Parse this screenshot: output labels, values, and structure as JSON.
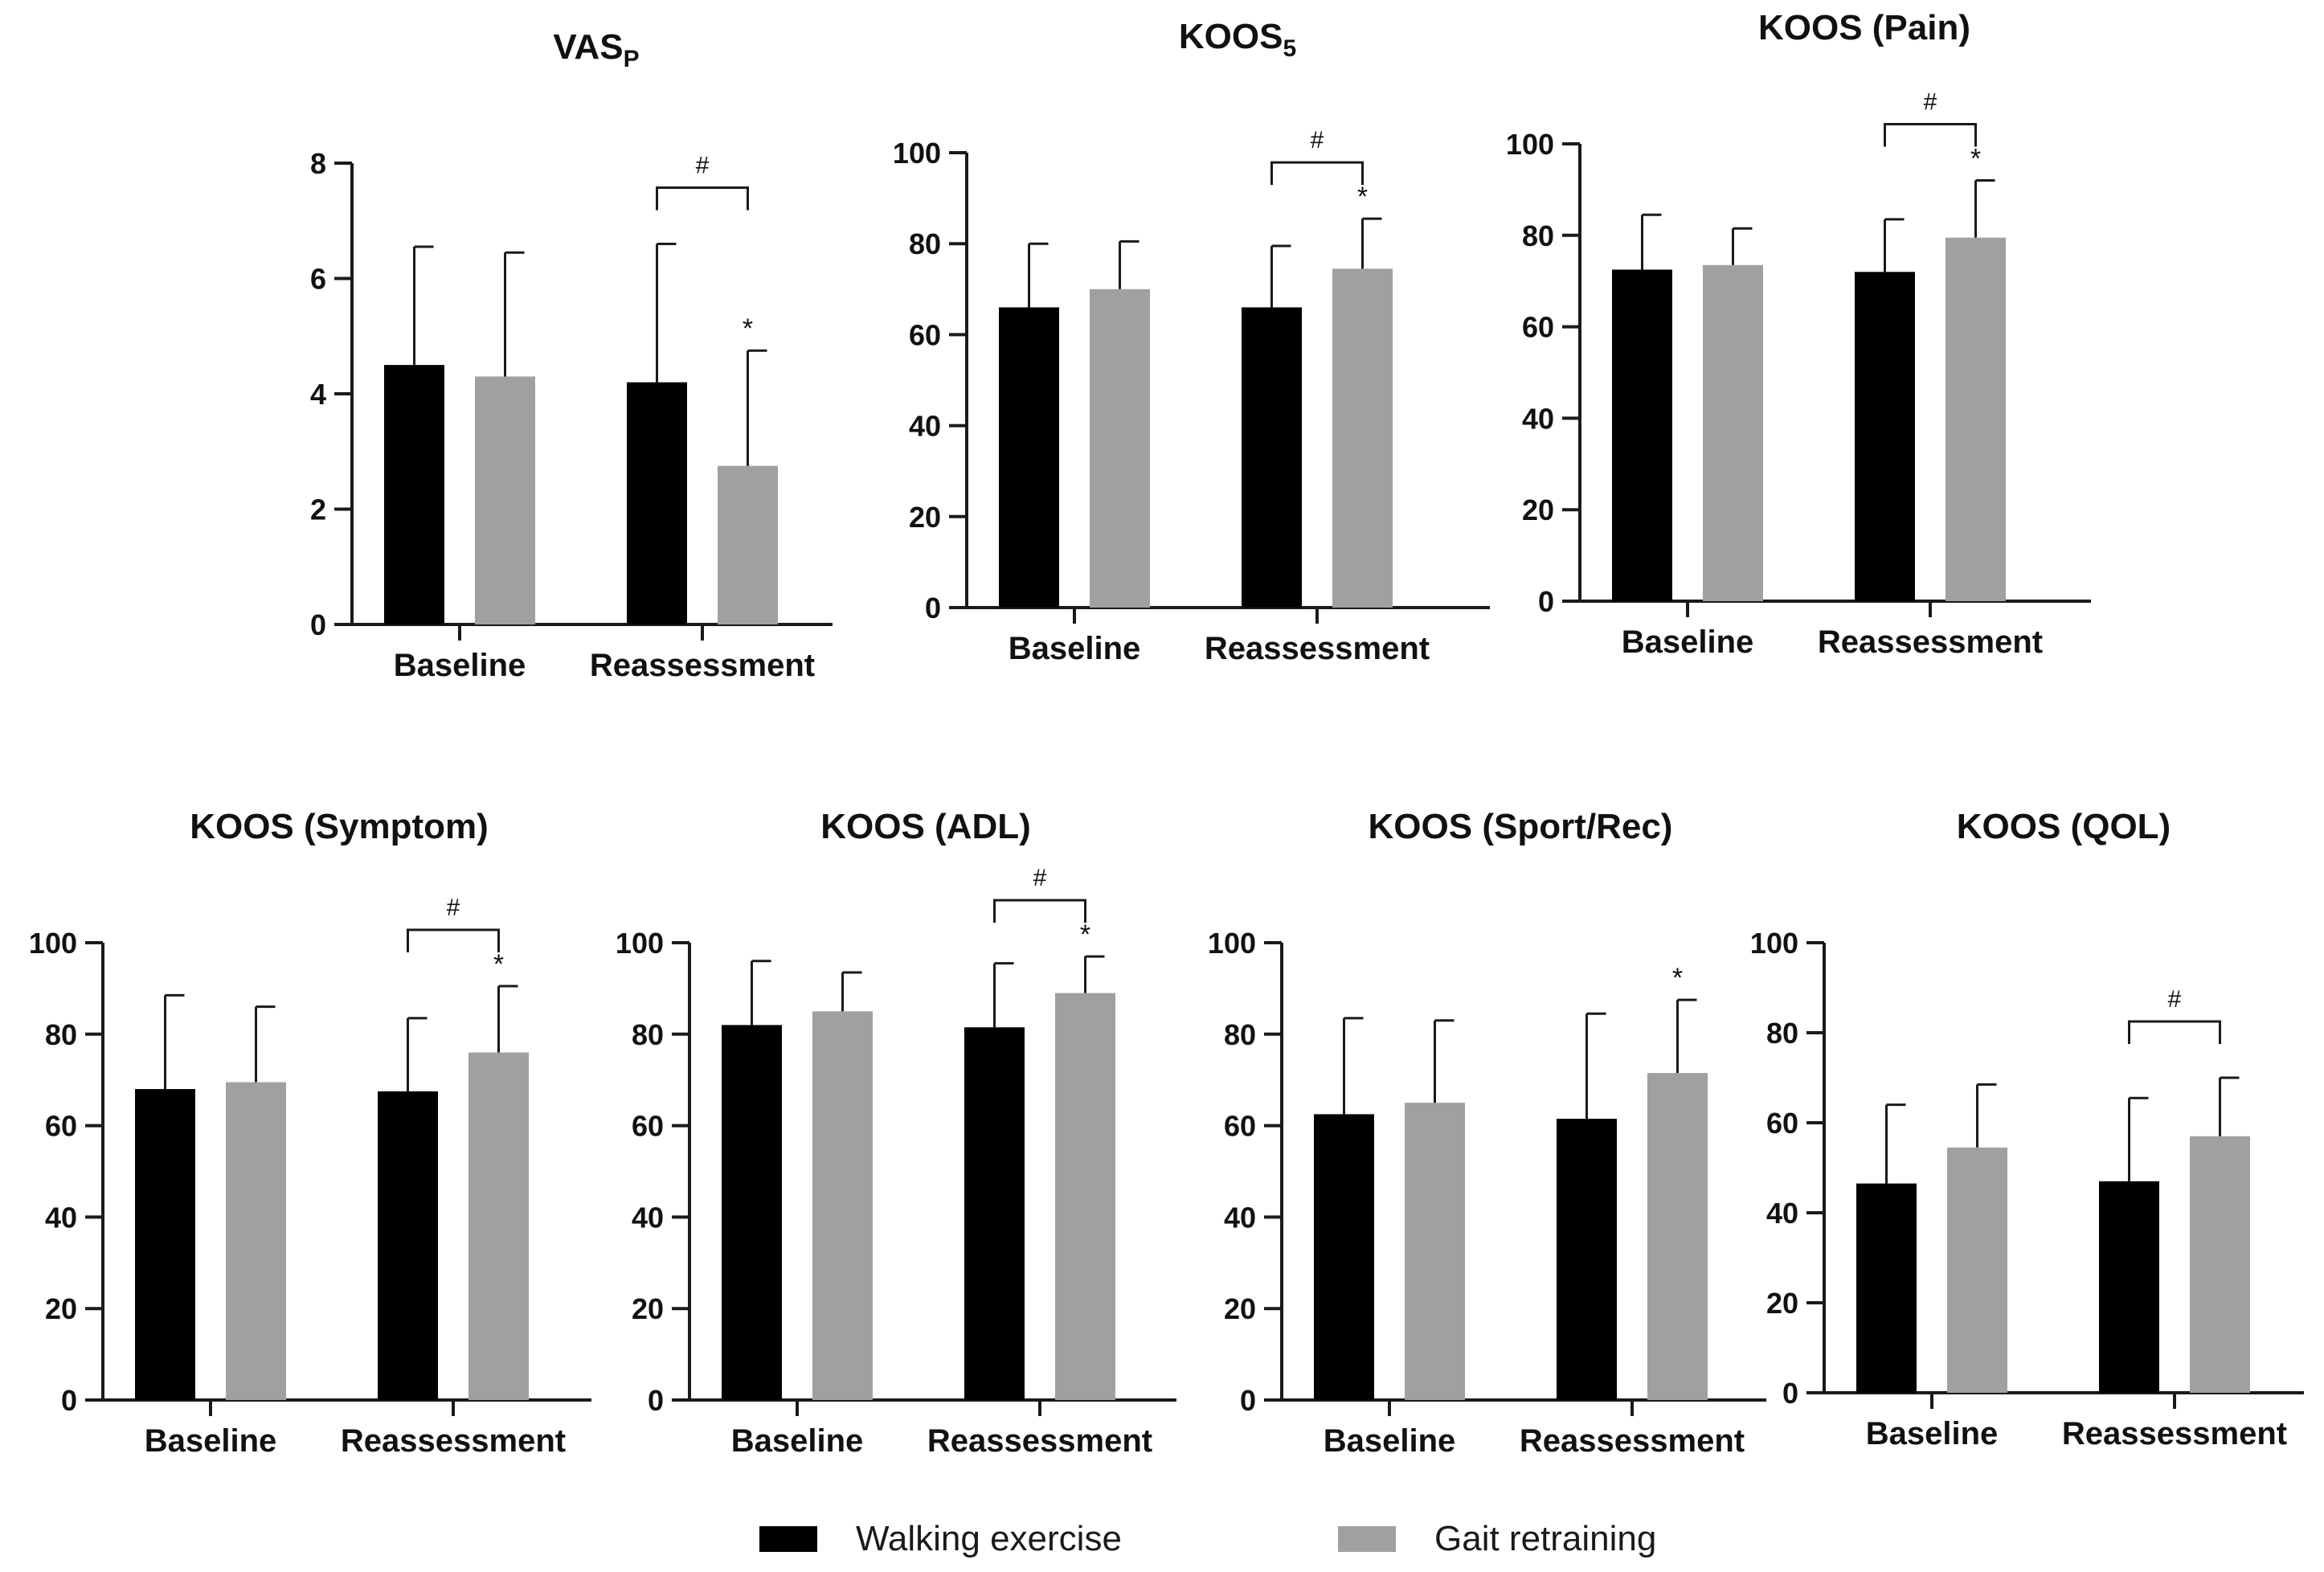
{
  "chart_data": [
    {
      "type": "bar",
      "title": "VAS",
      "title_sub": "P",
      "categories": [
        "Baseline",
        "Reassessment"
      ],
      "ylim": [
        0,
        8
      ],
      "yticks": [
        0,
        2,
        4,
        6,
        8
      ],
      "series": [
        {
          "name": "Walking exercise",
          "values": [
            4.5,
            4.2
          ],
          "errors": [
            2.05,
            2.4
          ]
        },
        {
          "name": "Gait retraining",
          "values": [
            4.3,
            2.75
          ],
          "errors": [
            2.15,
            2.0
          ]
        }
      ],
      "annotations": {
        "hash": "#",
        "star": "*",
        "star_on": [
          false,
          true
        ],
        "bracket": true
      }
    },
    {
      "type": "bar",
      "title": "KOOS",
      "title_sub": "5",
      "categories": [
        "Baseline",
        "Reassessment"
      ],
      "ylim": [
        0,
        100
      ],
      "yticks": [
        0,
        20,
        40,
        60,
        80,
        100
      ],
      "series": [
        {
          "name": "Walking exercise",
          "values": [
            66,
            66
          ],
          "errors": [
            14,
            13.5
          ]
        },
        {
          "name": "Gait retraining",
          "values": [
            70,
            74.5
          ],
          "errors": [
            10.5,
            11
          ]
        }
      ],
      "annotations": {
        "hash": "#",
        "star": "*",
        "star_on": [
          false,
          true
        ],
        "bracket": true
      }
    },
    {
      "type": "bar",
      "title": "KOOS (Pain)",
      "title_sub": "",
      "categories": [
        "Baseline",
        "Reassessment"
      ],
      "ylim": [
        0,
        100
      ],
      "yticks": [
        0,
        20,
        40,
        60,
        80,
        100
      ],
      "series": [
        {
          "name": "Walking exercise",
          "values": [
            72.5,
            72
          ],
          "errors": [
            12,
            11.5
          ]
        },
        {
          "name": "Gait retraining",
          "values": [
            73.5,
            79.5
          ],
          "errors": [
            8,
            12.5
          ]
        }
      ],
      "annotations": {
        "hash": "#",
        "star": "*",
        "star_on": [
          false,
          true
        ],
        "bracket": true
      }
    },
    {
      "type": "bar",
      "title": "KOOS (Symptom)",
      "title_sub": "",
      "categories": [
        "Baseline",
        "Reassessment"
      ],
      "ylim": [
        0,
        100
      ],
      "yticks": [
        0,
        20,
        40,
        60,
        80,
        100
      ],
      "series": [
        {
          "name": "Walking exercise",
          "values": [
            68,
            67.5
          ],
          "errors": [
            20.5,
            16
          ]
        },
        {
          "name": "Gait retraining",
          "values": [
            69.5,
            76
          ],
          "errors": [
            16.5,
            14.5
          ]
        }
      ],
      "annotations": {
        "hash": "#",
        "star": "*",
        "star_on": [
          false,
          true
        ],
        "bracket": true
      }
    },
    {
      "type": "bar",
      "title": "KOOS (ADL)",
      "title_sub": "",
      "categories": [
        "Baseline",
        "Reassessment"
      ],
      "ylim": [
        0,
        100
      ],
      "yticks": [
        0,
        20,
        40,
        60,
        80,
        100
      ],
      "series": [
        {
          "name": "Walking exercise",
          "values": [
            82,
            81.5
          ],
          "errors": [
            14,
            14
          ]
        },
        {
          "name": "Gait retraining",
          "values": [
            85,
            89
          ],
          "errors": [
            8.5,
            8
          ]
        }
      ],
      "annotations": {
        "hash": "#",
        "star": "*",
        "star_on": [
          false,
          true
        ],
        "bracket": true
      }
    },
    {
      "type": "bar",
      "title": "KOOS (Sport/Rec)",
      "title_sub": "",
      "categories": [
        "Baseline",
        "Reassessment"
      ],
      "ylim": [
        0,
        100
      ],
      "yticks": [
        0,
        20,
        40,
        60,
        80,
        100
      ],
      "series": [
        {
          "name": "Walking exercise",
          "values": [
            62.5,
            61.5
          ],
          "errors": [
            21,
            23
          ]
        },
        {
          "name": "Gait retraining",
          "values": [
            65,
            71.5
          ],
          "errors": [
            18,
            16
          ]
        }
      ],
      "annotations": {
        "hash": "",
        "star": "*",
        "star_on": [
          false,
          true
        ],
        "bracket": false
      }
    },
    {
      "type": "bar",
      "title": "KOOS (QOL)",
      "title_sub": "",
      "categories": [
        "Baseline",
        "Reassessment"
      ],
      "ylim": [
        0,
        100
      ],
      "yticks": [
        0,
        20,
        40,
        60,
        80,
        100
      ],
      "series": [
        {
          "name": "Walking exercise",
          "values": [
            46.5,
            47
          ],
          "errors": [
            17.5,
            18.5
          ]
        },
        {
          "name": "Gait retraining",
          "values": [
            54.5,
            57
          ],
          "errors": [
            14,
            13
          ]
        }
      ],
      "annotations": {
        "hash": "#",
        "star": "",
        "star_on": [
          false,
          false
        ],
        "bracket": true
      }
    }
  ],
  "legend": {
    "walking_label": "Walking exercise",
    "gait_label": "Gait retraining"
  },
  "colors": {
    "walking": "#000000",
    "gait": "#a0a0a0",
    "axis": "#1a1a1a"
  }
}
